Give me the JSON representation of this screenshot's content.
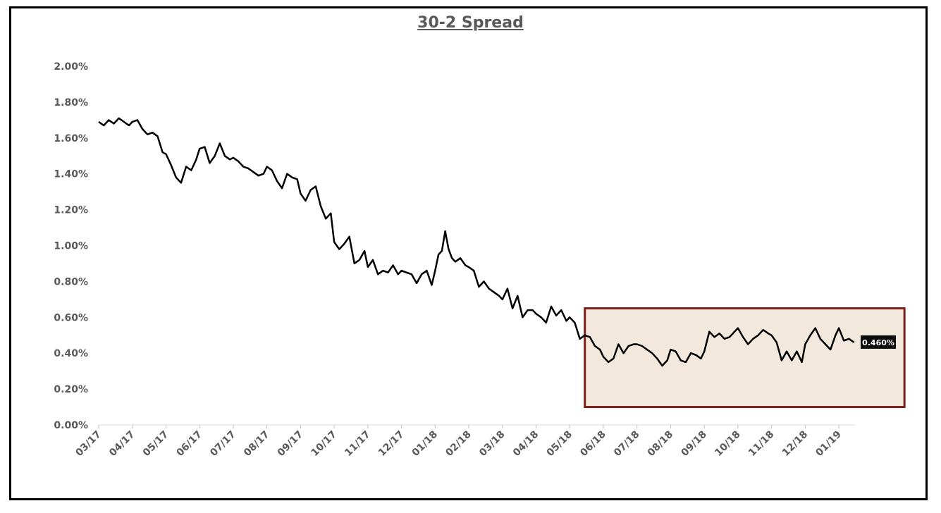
{
  "chart_data": {
    "type": "line",
    "title": "30-2 Spread",
    "xlabel": "",
    "ylabel": "",
    "ylim": [
      0,
      2.0
    ],
    "y_tick_labels": [
      "0.00%",
      "0.20%",
      "0.40%",
      "0.60%",
      "0.80%",
      "1.00%",
      "1.20%",
      "1.40%",
      "1.60%",
      "1.80%",
      "2.00%"
    ],
    "x_tick_labels": [
      "03/17",
      "04/17",
      "05/17",
      "06/17",
      "07/17",
      "08/17",
      "09/17",
      "10/17",
      "11/17",
      "12/17",
      "01/18",
      "02/18",
      "03/18",
      "04/18",
      "05/18",
      "06/18",
      "07/18",
      "08/18",
      "09/18",
      "10/18",
      "11/18",
      "12/18",
      "01/19"
    ],
    "grid": false,
    "legend": "none",
    "line_color": "#000000",
    "highlight_fill": "#f2e9dc",
    "highlight_border": "#7b1f1a",
    "last_value_label": "0.460%",
    "series": [
      {
        "x": [
          0,
          0.15,
          0.3,
          0.45,
          0.6,
          0.75,
          0.9,
          1.0,
          1.15,
          1.3,
          1.45,
          1.6,
          1.75,
          1.9,
          2.0,
          2.15,
          2.3,
          2.45,
          2.6,
          2.75,
          2.9,
          3.0,
          3.15,
          3.3,
          3.45,
          3.6,
          3.75,
          3.9,
          4.0,
          4.15,
          4.3,
          4.45,
          4.6,
          4.75,
          4.9,
          5.0,
          5.15,
          5.3,
          5.45,
          5.6,
          5.75,
          5.9,
          6.0,
          6.15,
          6.3,
          6.45,
          6.6,
          6.75,
          6.9,
          7.0,
          7.15,
          7.3,
          7.45,
          7.6,
          7.75,
          7.9,
          8.0,
          8.15,
          8.3,
          8.45,
          8.6,
          8.75,
          8.9,
          9.0,
          9.15,
          9.3,
          9.45,
          9.6,
          9.75,
          9.9,
          10.0,
          10.1,
          10.2,
          10.3,
          10.4,
          10.5,
          10.6,
          10.75,
          10.9,
          11.0,
          11.15,
          11.3,
          11.45,
          11.6,
          11.75,
          11.9,
          12.0,
          12.15,
          12.3,
          12.45,
          12.6,
          12.75,
          12.9,
          13.0,
          13.15,
          13.3,
          13.45,
          13.6,
          13.75,
          13.9,
          14.0,
          14.15,
          14.3,
          14.45,
          14.6,
          14.75,
          14.9,
          15.0,
          15.15,
          15.3,
          15.45,
          15.6,
          15.75,
          15.9,
          16.0,
          16.15,
          16.3,
          16.45,
          16.6,
          16.75,
          16.9,
          17.0,
          17.15,
          17.3,
          17.45,
          17.6,
          17.75,
          17.9,
          18.0,
          18.15,
          18.3,
          18.45,
          18.6,
          18.75,
          18.9,
          19.0,
          19.15,
          19.3,
          19.45,
          19.6,
          19.75,
          19.9,
          20.0,
          20.15,
          20.3,
          20.45,
          20.6,
          20.75,
          20.9,
          21.0,
          21.15,
          21.3,
          21.45,
          21.6,
          21.75,
          21.9,
          22.0,
          22.15,
          22.3,
          22.45
        ],
        "y": [
          1.69,
          1.67,
          1.7,
          1.68,
          1.71,
          1.69,
          1.67,
          1.69,
          1.7,
          1.65,
          1.62,
          1.63,
          1.61,
          1.52,
          1.51,
          1.45,
          1.38,
          1.35,
          1.44,
          1.42,
          1.48,
          1.54,
          1.55,
          1.46,
          1.5,
          1.57,
          1.5,
          1.48,
          1.49,
          1.47,
          1.44,
          1.43,
          1.41,
          1.39,
          1.4,
          1.44,
          1.42,
          1.36,
          1.32,
          1.4,
          1.38,
          1.37,
          1.29,
          1.25,
          1.31,
          1.33,
          1.22,
          1.15,
          1.18,
          1.02,
          0.98,
          1.01,
          1.05,
          0.9,
          0.92,
          0.97,
          0.88,
          0.92,
          0.84,
          0.86,
          0.85,
          0.89,
          0.84,
          0.86,
          0.85,
          0.84,
          0.79,
          0.84,
          0.86,
          0.78,
          0.86,
          0.95,
          0.97,
          1.08,
          0.98,
          0.93,
          0.91,
          0.93,
          0.89,
          0.88,
          0.86,
          0.77,
          0.8,
          0.76,
          0.74,
          0.72,
          0.7,
          0.76,
          0.65,
          0.72,
          0.6,
          0.64,
          0.64,
          0.62,
          0.6,
          0.57,
          0.66,
          0.61,
          0.64,
          0.58,
          0.6,
          0.57,
          0.48,
          0.5,
          0.49,
          0.44,
          0.42,
          0.38,
          0.35,
          0.37,
          0.45,
          0.4,
          0.44,
          0.45,
          0.45,
          0.44,
          0.42,
          0.4,
          0.37,
          0.33,
          0.36,
          0.42,
          0.41,
          0.36,
          0.35,
          0.4,
          0.39,
          0.37,
          0.41,
          0.52,
          0.49,
          0.51,
          0.48,
          0.49,
          0.52,
          0.54,
          0.49,
          0.45,
          0.48,
          0.5,
          0.53,
          0.51,
          0.5,
          0.46,
          0.36,
          0.41,
          0.36,
          0.41,
          0.35,
          0.45,
          0.5,
          0.54,
          0.48,
          0.45,
          0.42,
          0.5,
          0.54,
          0.47,
          0.48,
          0.46
        ]
      }
    ],
    "highlight_region": {
      "x_start": 14.45,
      "x_end": 23.95,
      "y_bottom": 0.1,
      "y_top": 0.65
    }
  }
}
